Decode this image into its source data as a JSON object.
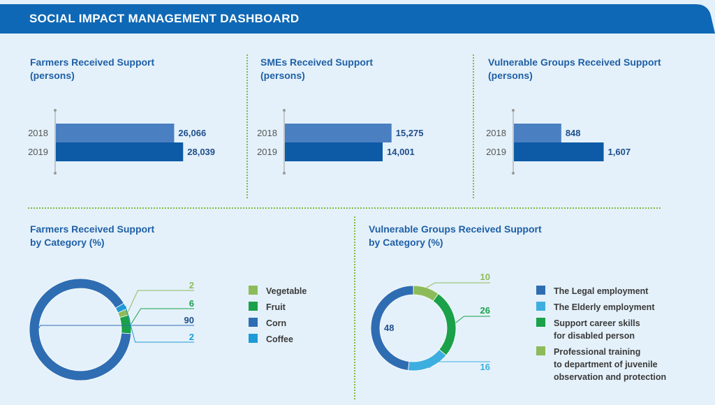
{
  "header": {
    "title": "SOCIAL IMPACT MANAGEMENT DASHBOARD"
  },
  "colors": {
    "header_bg": "#0f68b5",
    "bar_2018": "#4a7fc1",
    "bar_2019": "#0d5aa6",
    "value_text": "#1f4e8c",
    "title_text": "#1f5fa6",
    "divider": "#7dbb3f"
  },
  "panels": {
    "farmers": {
      "title_line1": "Farmers Received Support",
      "title_line2": "(persons)"
    },
    "smes": {
      "title_line1": "SMEs Received Support",
      "title_line2": "(persons)"
    },
    "vulnerable": {
      "title_line1": "Vulnerable Groups Received Support",
      "title_line2": "(persons)"
    },
    "farmers_cat": {
      "title_line1": "Farmers Received Support",
      "title_line2": "by Category (%)"
    },
    "vulnerable_cat": {
      "title_line1": "Vulnerable Groups Received Support",
      "title_line2": "by Category (%)"
    }
  },
  "chart_data": [
    {
      "type": "bar",
      "orientation": "horizontal",
      "categories": [
        "2018",
        "2019"
      ],
      "values": [
        26066,
        28039
      ],
      "labels": [
        "26,066",
        "28,039"
      ],
      "colors": [
        "#4a7fc1",
        "#0d5aa6"
      ]
    },
    {
      "type": "bar",
      "orientation": "horizontal",
      "categories": [
        "2018",
        "2019"
      ],
      "values": [
        15275,
        14001
      ],
      "labels": [
        "15,275",
        "14,001"
      ],
      "colors": [
        "#4a7fc1",
        "#0d5aa6"
      ]
    },
    {
      "type": "bar",
      "orientation": "horizontal",
      "categories": [
        "2018",
        "2019"
      ],
      "values": [
        848,
        1607
      ],
      "labels": [
        "848",
        "1,607"
      ],
      "colors": [
        "#4a7fc1",
        "#0d5aa6"
      ]
    },
    {
      "type": "pie",
      "donut": true,
      "slices": [
        {
          "label": "Vegetable",
          "value": 2,
          "color": "#8dbb59"
        },
        {
          "label": "Fruit",
          "value": 6,
          "color": "#1aa14a"
        },
        {
          "label": "Corn",
          "value": 90,
          "color": "#2f6db3"
        },
        {
          "label": "Coffee",
          "value": 2,
          "color": "#1e9ad8"
        }
      ]
    },
    {
      "type": "pie",
      "donut": true,
      "slices": [
        {
          "label": "The Legal employment",
          "value": 48,
          "color": "#2f6db3"
        },
        {
          "label": "The Elderly employment",
          "value": 16,
          "color": "#3daee0"
        },
        {
          "label": "Support career skills\nfor disabled person",
          "value": 26,
          "color": "#1aa14a"
        },
        {
          "label": "Professional training\nto department of juvenile\nobservation and protection",
          "value": 10,
          "color": "#8dbb59"
        }
      ]
    }
  ]
}
